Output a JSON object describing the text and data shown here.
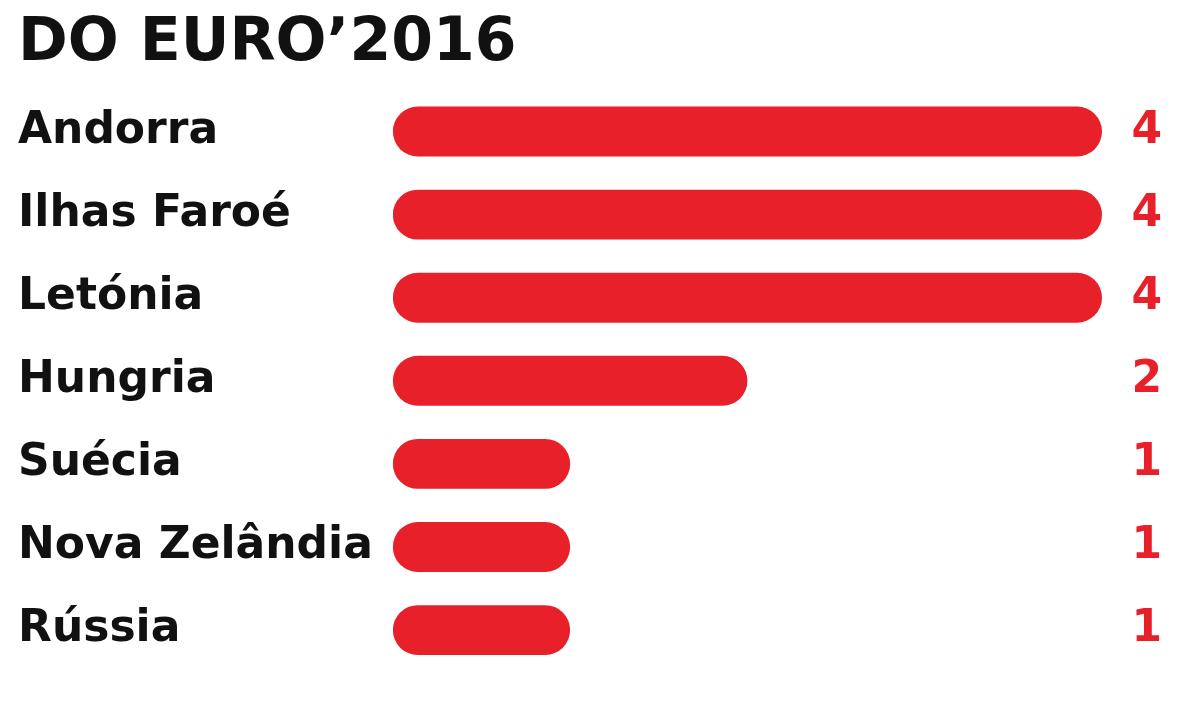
{
  "chart_data": {
    "type": "bar",
    "orientation": "horizontal",
    "title": "DO EURO’2016",
    "categories": [
      "Andorra",
      "Ilhas Faroé",
      "Letónia",
      "Hungria",
      "Suécia",
      "Nova Zelândia",
      "Rússia"
    ],
    "values": [
      4,
      4,
      4,
      2,
      1,
      1,
      1
    ],
    "color": "#e8202a",
    "tick_labels": "y",
    "grid": false,
    "legend": false,
    "data_labels": true
  }
}
